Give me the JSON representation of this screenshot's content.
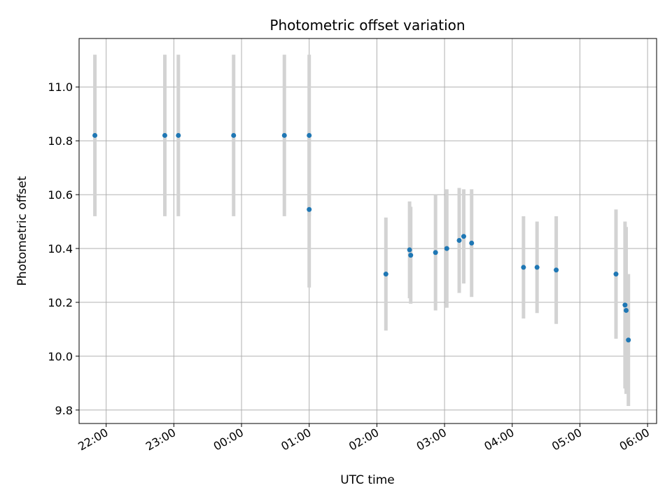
{
  "chart_data": {
    "type": "scatter",
    "title": "Photometric offset variation",
    "xlabel": "UTC time",
    "ylabel": "Photometric offset",
    "grid": true,
    "xlim": [
      "21:36",
      "06:08"
    ],
    "ylim": [
      9.75,
      11.18
    ],
    "xticks": [
      "22:00",
      "23:00",
      "00:00",
      "01:00",
      "02:00",
      "03:00",
      "04:00",
      "05:00",
      "06:00"
    ],
    "yticks": [
      "9.8",
      "10.0",
      "10.2",
      "10.4",
      "10.6",
      "10.8",
      "11.0"
    ],
    "colors": {
      "point": "#1f77b4",
      "errorbar": "#d3d3d3",
      "grid": "#b0b0b0"
    },
    "points": [
      {
        "x": "21:50",
        "y": 10.82,
        "err": 0.3
      },
      {
        "x": "22:52",
        "y": 10.82,
        "err": 0.3
      },
      {
        "x": "23:04",
        "y": 10.82,
        "err": 0.3
      },
      {
        "x": "23:53",
        "y": 10.82,
        "err": 0.3
      },
      {
        "x": "00:38",
        "y": 10.82,
        "err": 0.3
      },
      {
        "x": "01:00",
        "y": 10.82,
        "err": 0.3
      },
      {
        "x": "01:00",
        "y": 10.545,
        "err": 0.29
      },
      {
        "x": "02:08",
        "y": 10.305,
        "err": 0.21
      },
      {
        "x": "02:29",
        "y": 10.395,
        "err": 0.18
      },
      {
        "x": "02:30",
        "y": 10.375,
        "err": 0.18
      },
      {
        "x": "02:52",
        "y": 10.385,
        "err": 0.215
      },
      {
        "x": "03:02",
        "y": 10.4,
        "err": 0.22
      },
      {
        "x": "03:13",
        "y": 10.43,
        "err": 0.195
      },
      {
        "x": "03:17",
        "y": 10.445,
        "err": 0.175
      },
      {
        "x": "03:24",
        "y": 10.42,
        "err": 0.2
      },
      {
        "x": "04:10",
        "y": 10.33,
        "err": 0.19
      },
      {
        "x": "04:22",
        "y": 10.33,
        "err": 0.17
      },
      {
        "x": "04:39",
        "y": 10.32,
        "err": 0.2
      },
      {
        "x": "05:32",
        "y": 10.305,
        "err": 0.24
      },
      {
        "x": "05:40",
        "y": 10.19,
        "err": 0.31
      },
      {
        "x": "05:41",
        "y": 10.17,
        "err": 0.31
      },
      {
        "x": "05:43",
        "y": 10.06,
        "err": 0.245
      }
    ]
  }
}
